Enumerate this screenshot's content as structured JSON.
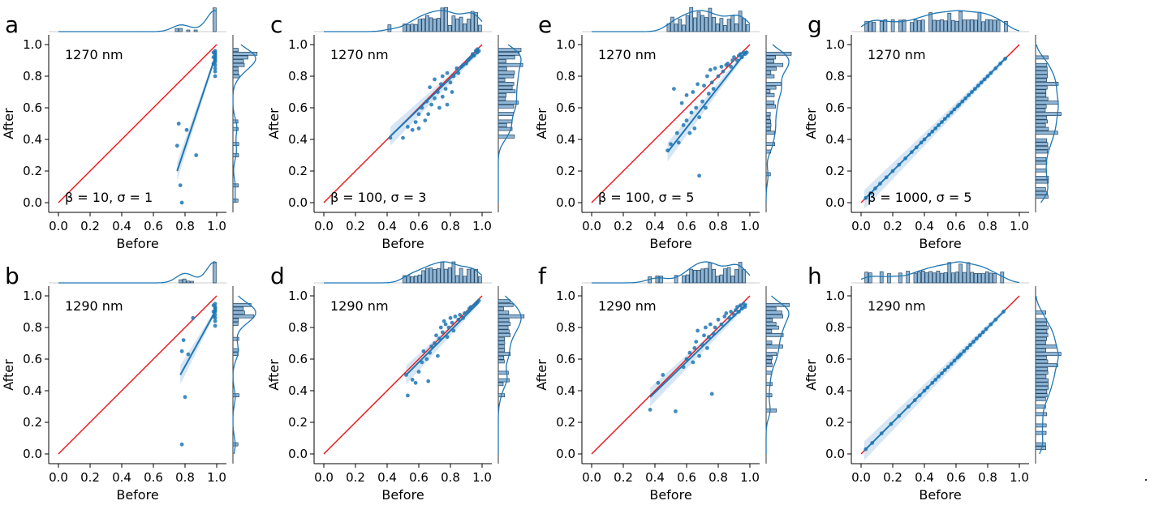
{
  "figure": {
    "trailing_mark": "."
  },
  "chart_data": [
    {
      "panel": "a",
      "type": "scatter",
      "wavelength_label": "1270 nm",
      "params_label": "β = 10, σ = 1",
      "xlabel": "Before",
      "ylabel": "After",
      "xlim": [
        0,
        1
      ],
      "ylim": [
        0,
        1
      ],
      "xticks": [
        "0.0",
        "0.2",
        "0.4",
        "0.6",
        "0.8",
        "1.0"
      ],
      "yticks": [
        "0.0",
        "0.2",
        "0.4",
        "0.6",
        "0.8",
        "1.0"
      ],
      "identity_line": [
        [
          0,
          0
        ],
        [
          1,
          1
        ]
      ],
      "fit_line": [
        [
          0.75,
          0.2
        ],
        [
          0.99,
          0.92
        ]
      ],
      "points": [
        [
          0.76,
          0.5
        ],
        [
          0.77,
          0.11
        ],
        [
          0.78,
          0.0
        ],
        [
          0.81,
          0.46
        ],
        [
          0.75,
          0.36
        ],
        [
          0.87,
          0.3
        ],
        [
          0.99,
          0.8
        ],
        [
          0.99,
          0.83
        ],
        [
          0.99,
          0.85
        ],
        [
          0.99,
          0.87
        ],
        [
          0.99,
          0.89
        ],
        [
          0.99,
          0.9
        ],
        [
          0.99,
          0.91
        ],
        [
          0.99,
          0.92
        ],
        [
          0.99,
          0.93
        ],
        [
          0.99,
          0.94
        ],
        [
          0.99,
          0.95
        ],
        [
          0.99,
          0.96
        ],
        [
          0.98,
          0.88
        ],
        [
          0.98,
          0.92
        ],
        [
          0.98,
          0.95
        ]
      ]
    },
    {
      "panel": "b",
      "type": "scatter",
      "wavelength_label": "1290 nm",
      "params_label": "",
      "xlabel": "Before",
      "ylabel": "After",
      "xlim": [
        0,
        1
      ],
      "ylim": [
        0,
        1
      ],
      "xticks": [
        "0.0",
        "0.2",
        "0.4",
        "0.6",
        "0.8",
        "1.0"
      ],
      "yticks": [
        "0.0",
        "0.2",
        "0.4",
        "0.6",
        "0.8",
        "1.0"
      ],
      "identity_line": [
        [
          0,
          0
        ],
        [
          1,
          1
        ]
      ],
      "fit_line": [
        [
          0.77,
          0.5
        ],
        [
          0.99,
          0.9
        ]
      ],
      "points": [
        [
          0.78,
          0.06
        ],
        [
          0.8,
          0.36
        ],
        [
          0.78,
          0.65
        ],
        [
          0.79,
          0.72
        ],
        [
          0.85,
          0.86
        ],
        [
          0.82,
          0.63
        ],
        [
          0.99,
          0.81
        ],
        [
          0.99,
          0.84
        ],
        [
          0.99,
          0.86
        ],
        [
          0.99,
          0.88
        ],
        [
          0.99,
          0.9
        ],
        [
          0.99,
          0.91
        ],
        [
          0.99,
          0.92
        ],
        [
          0.99,
          0.93
        ],
        [
          0.99,
          0.95
        ],
        [
          0.98,
          0.87
        ],
        [
          0.98,
          0.9
        ],
        [
          0.98,
          0.94
        ]
      ]
    },
    {
      "panel": "c",
      "type": "scatter",
      "wavelength_label": "1270 nm",
      "params_label": "β = 100, σ = 3",
      "xlabel": "Before",
      "ylabel": "After",
      "xlim": [
        0,
        1
      ],
      "ylim": [
        0,
        1
      ],
      "xticks": [
        "0.0",
        "0.2",
        "0.4",
        "0.6",
        "0.8",
        "1.0"
      ],
      "yticks": [
        "0.0",
        "0.2",
        "0.4",
        "0.6",
        "0.8",
        "1.0"
      ],
      "identity_line": [
        [
          0,
          0
        ],
        [
          1,
          1
        ]
      ],
      "fit_line": [
        [
          0.42,
          0.42
        ],
        [
          0.98,
          0.96
        ]
      ],
      "points": [
        [
          0.42,
          0.41
        ],
        [
          0.5,
          0.41
        ],
        [
          0.53,
          0.48
        ],
        [
          0.56,
          0.46
        ],
        [
          0.58,
          0.51
        ],
        [
          0.6,
          0.56
        ],
        [
          0.6,
          0.47
        ],
        [
          0.62,
          0.6
        ],
        [
          0.64,
          0.52
        ],
        [
          0.65,
          0.64
        ],
        [
          0.66,
          0.56
        ],
        [
          0.67,
          0.73
        ],
        [
          0.68,
          0.62
        ],
        [
          0.7,
          0.66
        ],
        [
          0.7,
          0.78
        ],
        [
          0.72,
          0.7
        ],
        [
          0.73,
          0.6
        ],
        [
          0.74,
          0.75
        ],
        [
          0.75,
          0.8
        ],
        [
          0.75,
          0.67
        ],
        [
          0.77,
          0.72
        ],
        [
          0.78,
          0.82
        ],
        [
          0.78,
          0.62
        ],
        [
          0.8,
          0.76
        ],
        [
          0.81,
          0.7
        ],
        [
          0.82,
          0.8
        ],
        [
          0.84,
          0.85
        ],
        [
          0.85,
          0.82
        ],
        [
          0.87,
          0.86
        ],
        [
          0.88,
          0.87
        ],
        [
          0.9,
          0.88
        ],
        [
          0.91,
          0.9
        ],
        [
          0.92,
          0.91
        ],
        [
          0.93,
          0.92
        ],
        [
          0.94,
          0.94
        ],
        [
          0.95,
          0.93
        ],
        [
          0.96,
          0.96
        ],
        [
          0.97,
          0.95
        ],
        [
          0.97,
          0.97
        ],
        [
          0.98,
          0.96
        ]
      ]
    },
    {
      "panel": "d",
      "type": "scatter",
      "wavelength_label": "1290 nm",
      "params_label": "",
      "xlabel": "Before",
      "ylabel": "After",
      "xlim": [
        0,
        1
      ],
      "ylim": [
        0,
        1
      ],
      "xticks": [
        "0.0",
        "0.2",
        "0.4",
        "0.6",
        "0.8",
        "1.0"
      ],
      "yticks": [
        "0.0",
        "0.2",
        "0.4",
        "0.6",
        "0.8",
        "1.0"
      ],
      "identity_line": [
        [
          0,
          0
        ],
        [
          1,
          1
        ]
      ],
      "fit_line": [
        [
          0.52,
          0.5
        ],
        [
          0.98,
          0.96
        ]
      ],
      "points": [
        [
          0.52,
          0.5
        ],
        [
          0.53,
          0.37
        ],
        [
          0.56,
          0.47
        ],
        [
          0.58,
          0.45
        ],
        [
          0.6,
          0.52
        ],
        [
          0.62,
          0.58
        ],
        [
          0.63,
          0.65
        ],
        [
          0.65,
          0.6
        ],
        [
          0.66,
          0.46
        ],
        [
          0.67,
          0.64
        ],
        [
          0.68,
          0.68
        ],
        [
          0.7,
          0.7
        ],
        [
          0.71,
          0.75
        ],
        [
          0.72,
          0.62
        ],
        [
          0.73,
          0.73
        ],
        [
          0.74,
          0.8
        ],
        [
          0.75,
          0.77
        ],
        [
          0.76,
          0.84
        ],
        [
          0.77,
          0.82
        ],
        [
          0.78,
          0.74
        ],
        [
          0.79,
          0.8
        ],
        [
          0.8,
          0.86
        ],
        [
          0.81,
          0.83
        ],
        [
          0.82,
          0.78
        ],
        [
          0.83,
          0.87
        ],
        [
          0.85,
          0.85
        ],
        [
          0.86,
          0.88
        ],
        [
          0.88,
          0.86
        ],
        [
          0.89,
          0.89
        ],
        [
          0.91,
          0.9
        ],
        [
          0.92,
          0.92
        ],
        [
          0.93,
          0.93
        ],
        [
          0.95,
          0.94
        ],
        [
          0.96,
          0.95
        ],
        [
          0.97,
          0.96
        ],
        [
          0.98,
          0.97
        ]
      ]
    },
    {
      "panel": "e",
      "type": "scatter",
      "wavelength_label": "1270 nm",
      "params_label": "β = 100, σ = 5",
      "xlabel": "Before",
      "ylabel": "After",
      "xlim": [
        0,
        1
      ],
      "ylim": [
        0,
        1
      ],
      "xticks": [
        "0.0",
        "0.2",
        "0.4",
        "0.6",
        "0.8",
        "1.0"
      ],
      "yticks": [
        "0.0",
        "0.2",
        "0.4",
        "0.6",
        "0.8",
        "1.0"
      ],
      "identity_line": [
        [
          0,
          0
        ],
        [
          1,
          1
        ]
      ],
      "fit_line": [
        [
          0.48,
          0.32
        ],
        [
          0.98,
          0.96
        ]
      ],
      "points": [
        [
          0.48,
          0.33
        ],
        [
          0.5,
          0.37
        ],
        [
          0.52,
          0.72
        ],
        [
          0.54,
          0.44
        ],
        [
          0.55,
          0.38
        ],
        [
          0.57,
          0.63
        ],
        [
          0.58,
          0.49
        ],
        [
          0.6,
          0.52
        ],
        [
          0.6,
          0.68
        ],
        [
          0.62,
          0.44
        ],
        [
          0.63,
          0.57
        ],
        [
          0.64,
          0.7
        ],
        [
          0.65,
          0.47
        ],
        [
          0.66,
          0.6
        ],
        [
          0.67,
          0.75
        ],
        [
          0.68,
          0.17
        ],
        [
          0.68,
          0.54
        ],
        [
          0.7,
          0.64
        ],
        [
          0.71,
          0.74
        ],
        [
          0.72,
          0.6
        ],
        [
          0.73,
          0.8
        ],
        [
          0.74,
          0.69
        ],
        [
          0.75,
          0.84
        ],
        [
          0.76,
          0.76
        ],
        [
          0.77,
          0.72
        ],
        [
          0.78,
          0.85
        ],
        [
          0.8,
          0.8
        ],
        [
          0.82,
          0.86
        ],
        [
          0.83,
          0.83
        ],
        [
          0.85,
          0.87
        ],
        [
          0.86,
          0.88
        ],
        [
          0.88,
          0.86
        ],
        [
          0.89,
          0.9
        ],
        [
          0.9,
          0.92
        ],
        [
          0.92,
          0.9
        ],
        [
          0.93,
          0.93
        ],
        [
          0.94,
          0.94
        ],
        [
          0.95,
          0.92
        ],
        [
          0.96,
          0.95
        ],
        [
          0.97,
          0.94
        ],
        [
          0.98,
          0.95
        ]
      ]
    },
    {
      "panel": "f",
      "type": "scatter",
      "wavelength_label": "1290 nm",
      "params_label": "",
      "xlabel": "Before",
      "ylabel": "After",
      "xlim": [
        0,
        1
      ],
      "ylim": [
        0,
        1
      ],
      "xticks": [
        "0.0",
        "0.2",
        "0.4",
        "0.6",
        "0.8",
        "1.0"
      ],
      "yticks": [
        "0.0",
        "0.2",
        "0.4",
        "0.6",
        "0.8",
        "1.0"
      ],
      "identity_line": [
        [
          0,
          0
        ],
        [
          1,
          1
        ]
      ],
      "fit_line": [
        [
          0.37,
          0.36
        ],
        [
          0.98,
          0.95
        ]
      ],
      "points": [
        [
          0.37,
          0.28
        ],
        [
          0.42,
          0.45
        ],
        [
          0.45,
          0.5
        ],
        [
          0.53,
          0.27
        ],
        [
          0.58,
          0.55
        ],
        [
          0.6,
          0.6
        ],
        [
          0.62,
          0.64
        ],
        [
          0.64,
          0.58
        ],
        [
          0.65,
          0.67
        ],
        [
          0.66,
          0.71
        ],
        [
          0.67,
          0.78
        ],
        [
          0.68,
          0.62
        ],
        [
          0.7,
          0.69
        ],
        [
          0.71,
          0.75
        ],
        [
          0.72,
          0.8
        ],
        [
          0.73,
          0.67
        ],
        [
          0.74,
          0.74
        ],
        [
          0.75,
          0.82
        ],
        [
          0.76,
          0.38
        ],
        [
          0.77,
          0.76
        ],
        [
          0.78,
          0.8
        ],
        [
          0.8,
          0.85
        ],
        [
          0.82,
          0.82
        ],
        [
          0.84,
          0.87
        ],
        [
          0.85,
          0.89
        ],
        [
          0.87,
          0.86
        ],
        [
          0.88,
          0.9
        ],
        [
          0.9,
          0.88
        ],
        [
          0.91,
          0.91
        ],
        [
          0.92,
          0.93
        ],
        [
          0.93,
          0.9
        ],
        [
          0.94,
          0.94
        ],
        [
          0.95,
          0.92
        ],
        [
          0.96,
          0.95
        ],
        [
          0.97,
          0.93
        ]
      ]
    },
    {
      "panel": "g",
      "type": "scatter",
      "wavelength_label": "1270 nm",
      "params_label": "β = 1000, σ = 5",
      "xlabel": "Before",
      "ylabel": "After",
      "xlim": [
        0,
        1
      ],
      "ylim": [
        0,
        1
      ],
      "xticks": [
        "0.0",
        "0.2",
        "0.4",
        "0.6",
        "0.8",
        "1.0"
      ],
      "yticks": [
        "0.0",
        "0.2",
        "0.4",
        "0.6",
        "0.8",
        "1.0"
      ],
      "identity_line": [
        [
          0,
          0
        ],
        [
          1,
          1
        ]
      ],
      "fit_line": [
        [
          0.02,
          0.02
        ],
        [
          0.92,
          0.92
        ]
      ],
      "points": [
        [
          0.03,
          0.03
        ],
        [
          0.06,
          0.06
        ],
        [
          0.09,
          0.09
        ],
        [
          0.12,
          0.12
        ],
        [
          0.16,
          0.16
        ],
        [
          0.2,
          0.2
        ],
        [
          0.24,
          0.24
        ],
        [
          0.28,
          0.28
        ],
        [
          0.32,
          0.32
        ],
        [
          0.35,
          0.35
        ],
        [
          0.38,
          0.38
        ],
        [
          0.4,
          0.4
        ],
        [
          0.43,
          0.43
        ],
        [
          0.45,
          0.45
        ],
        [
          0.47,
          0.47
        ],
        [
          0.49,
          0.49
        ],
        [
          0.51,
          0.51
        ],
        [
          0.53,
          0.53
        ],
        [
          0.55,
          0.55
        ],
        [
          0.57,
          0.57
        ],
        [
          0.59,
          0.59
        ],
        [
          0.61,
          0.61
        ],
        [
          0.62,
          0.62
        ],
        [
          0.64,
          0.64
        ],
        [
          0.66,
          0.66
        ],
        [
          0.68,
          0.68
        ],
        [
          0.7,
          0.7
        ],
        [
          0.72,
          0.72
        ],
        [
          0.74,
          0.74
        ],
        [
          0.76,
          0.76
        ],
        [
          0.78,
          0.78
        ],
        [
          0.8,
          0.8
        ],
        [
          0.82,
          0.82
        ],
        [
          0.85,
          0.85
        ],
        [
          0.88,
          0.88
        ],
        [
          0.91,
          0.91
        ]
      ]
    },
    {
      "panel": "h",
      "type": "scatter",
      "wavelength_label": "1290 nm",
      "params_label": "",
      "xlabel": "Before",
      "ylabel": "After",
      "xlim": [
        0,
        1
      ],
      "ylim": [
        0,
        1
      ],
      "xticks": [
        "0.0",
        "0.2",
        "0.4",
        "0.6",
        "0.8",
        "1.0"
      ],
      "yticks": [
        "0.0",
        "0.2",
        "0.4",
        "0.6",
        "0.8",
        "1.0"
      ],
      "identity_line": [
        [
          0,
          0
        ],
        [
          1,
          1
        ]
      ],
      "fit_line": [
        [
          0.02,
          0.02
        ],
        [
          0.91,
          0.91
        ]
      ],
      "points": [
        [
          0.03,
          0.03
        ],
        [
          0.07,
          0.07
        ],
        [
          0.13,
          0.13
        ],
        [
          0.19,
          0.19
        ],
        [
          0.24,
          0.24
        ],
        [
          0.3,
          0.3
        ],
        [
          0.34,
          0.34
        ],
        [
          0.37,
          0.37
        ],
        [
          0.4,
          0.4
        ],
        [
          0.42,
          0.42
        ],
        [
          0.45,
          0.45
        ],
        [
          0.47,
          0.47
        ],
        [
          0.49,
          0.49
        ],
        [
          0.51,
          0.51
        ],
        [
          0.53,
          0.53
        ],
        [
          0.55,
          0.55
        ],
        [
          0.57,
          0.57
        ],
        [
          0.59,
          0.59
        ],
        [
          0.61,
          0.61
        ],
        [
          0.62,
          0.62
        ],
        [
          0.63,
          0.63
        ],
        [
          0.65,
          0.65
        ],
        [
          0.67,
          0.67
        ],
        [
          0.69,
          0.69
        ],
        [
          0.71,
          0.71
        ],
        [
          0.73,
          0.73
        ],
        [
          0.75,
          0.75
        ],
        [
          0.77,
          0.77
        ],
        [
          0.79,
          0.79
        ],
        [
          0.82,
          0.82
        ],
        [
          0.85,
          0.85
        ],
        [
          0.9,
          0.9
        ]
      ]
    }
  ],
  "colors": {
    "points": "#1f77b4",
    "fit": "#1f77b4",
    "band": "#c6dbef",
    "identity": "#e8141a",
    "hist_fill": "#8fb6d6",
    "hist_edge": "#23425e",
    "axis": "#000000"
  }
}
